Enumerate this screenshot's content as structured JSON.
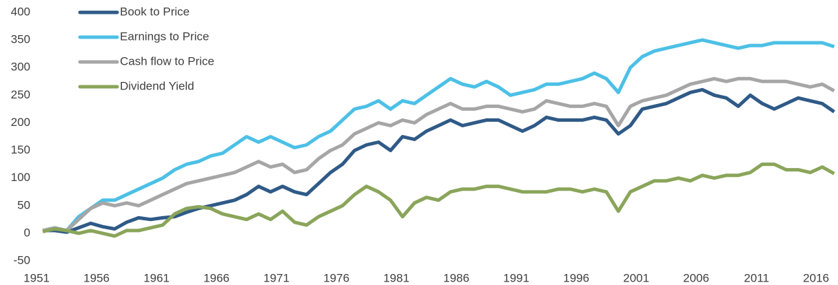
{
  "chart_data": {
    "type": "line",
    "x": [
      1951,
      1952,
      1953,
      1954,
      1955,
      1956,
      1957,
      1958,
      1959,
      1960,
      1961,
      1962,
      1963,
      1964,
      1965,
      1966,
      1967,
      1968,
      1969,
      1970,
      1971,
      1972,
      1973,
      1974,
      1975,
      1976,
      1977,
      1978,
      1979,
      1980,
      1981,
      1982,
      1983,
      1984,
      1985,
      1986,
      1987,
      1988,
      1989,
      1990,
      1991,
      1992,
      1993,
      1994,
      1995,
      1996,
      1997,
      1998,
      1999,
      2000,
      2001,
      2002,
      2003,
      2004,
      2005,
      2006,
      2007,
      2008,
      2009,
      2010,
      2011,
      2012,
      2013,
      2014,
      2015,
      2016,
      2017
    ],
    "series": [
      {
        "name": "Book to Price",
        "color": "#2f5a87",
        "values": [
          5,
          5,
          2,
          10,
          18,
          12,
          8,
          20,
          28,
          25,
          28,
          30,
          38,
          45,
          50,
          55,
          60,
          70,
          85,
          75,
          85,
          75,
          70,
          90,
          110,
          125,
          150,
          160,
          165,
          150,
          175,
          170,
          185,
          195,
          205,
          195,
          200,
          205,
          205,
          195,
          185,
          195,
          210,
          205,
          205,
          205,
          210,
          205,
          180,
          195,
          225,
          230,
          235,
          245,
          255,
          260,
          250,
          245,
          230,
          250,
          235,
          225,
          235,
          245,
          240,
          235,
          220
        ]
      },
      {
        "name": "Earnings to Price",
        "color": "#4cc0e6",
        "values": [
          5,
          10,
          5,
          30,
          45,
          60,
          60,
          70,
          80,
          90,
          100,
          115,
          125,
          130,
          140,
          145,
          160,
          175,
          165,
          175,
          165,
          155,
          160,
          175,
          185,
          205,
          225,
          230,
          240,
          225,
          240,
          235,
          250,
          265,
          280,
          270,
          265,
          275,
          265,
          250,
          255,
          260,
          270,
          270,
          275,
          280,
          290,
          280,
          255,
          300,
          320,
          330,
          335,
          340,
          345,
          350,
          345,
          340,
          335,
          340,
          340,
          345,
          345,
          345,
          345,
          345,
          338
        ]
      },
      {
        "name": "Cash flow to Price",
        "color": "#a6a6a6",
        "values": [
          5,
          10,
          5,
          25,
          45,
          55,
          50,
          55,
          50,
          60,
          70,
          80,
          90,
          95,
          100,
          105,
          110,
          120,
          130,
          120,
          125,
          110,
          115,
          135,
          150,
          160,
          180,
          190,
          200,
          195,
          205,
          200,
          215,
          225,
          235,
          225,
          225,
          230,
          230,
          225,
          220,
          225,
          240,
          235,
          230,
          230,
          235,
          230,
          195,
          230,
          240,
          245,
          250,
          260,
          270,
          275,
          280,
          275,
          280,
          280,
          275,
          275,
          275,
          270,
          265,
          270,
          258
        ]
      },
      {
        "name": "Dividend Yield",
        "color": "#8aa55a",
        "values": [
          3,
          8,
          5,
          0,
          5,
          0,
          -5,
          5,
          5,
          10,
          15,
          35,
          45,
          48,
          45,
          35,
          30,
          25,
          35,
          25,
          40,
          20,
          15,
          30,
          40,
          50,
          70,
          85,
          75,
          60,
          30,
          55,
          65,
          60,
          75,
          80,
          80,
          85,
          85,
          80,
          75,
          75,
          75,
          80,
          80,
          75,
          80,
          75,
          40,
          75,
          85,
          95,
          95,
          100,
          95,
          105,
          100,
          105,
          105,
          110,
          125,
          125,
          115,
          115,
          110,
          120,
          108
        ]
      }
    ],
    "xlim": [
      1951,
      2017.2
    ],
    "xticks": [
      1951,
      1956,
      1961,
      1966,
      1971,
      1976,
      1981,
      1986,
      1991,
      1996,
      2001,
      2006,
      2011,
      2016
    ],
    "ylim": [
      -50,
      400
    ],
    "yticks": [
      -50,
      0,
      50,
      100,
      150,
      200,
      250,
      300,
      350,
      400
    ],
    "legend": "top-left"
  }
}
